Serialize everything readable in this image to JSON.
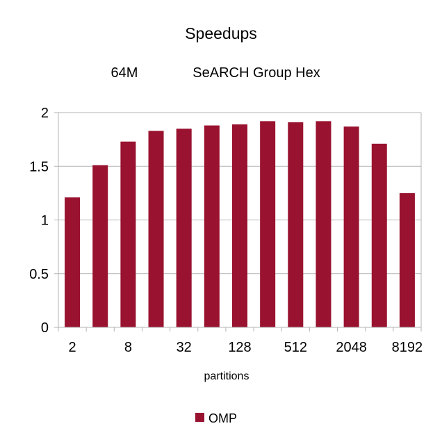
{
  "chart_data": {
    "type": "bar",
    "title": "Speedups",
    "subtitle_left": "64M",
    "subtitle_right": "SeARCH Group Hex",
    "xlabel": "partitions",
    "ylabel": "",
    "categories": [
      "2",
      "4",
      "8",
      "16",
      "32",
      "64",
      "128",
      "256",
      "512",
      "1024",
      "2048",
      "4096",
      "8192"
    ],
    "x_tick_labels": [
      "2",
      "",
      "8",
      "",
      "32",
      "",
      "128",
      "",
      "512",
      "",
      "2048",
      "",
      "8192"
    ],
    "series": [
      {
        "name": "OMP",
        "color": "#99122f",
        "values": [
          1.21,
          1.51,
          1.73,
          1.83,
          1.85,
          1.88,
          1.89,
          1.92,
          1.91,
          1.92,
          1.87,
          1.71,
          1.25
        ]
      }
    ],
    "ylim": [
      0,
      2
    ],
    "y_ticks": [
      "0",
      "0.5",
      "1",
      "1.5",
      "2"
    ],
    "grid": true,
    "legend_position": "bottom"
  }
}
